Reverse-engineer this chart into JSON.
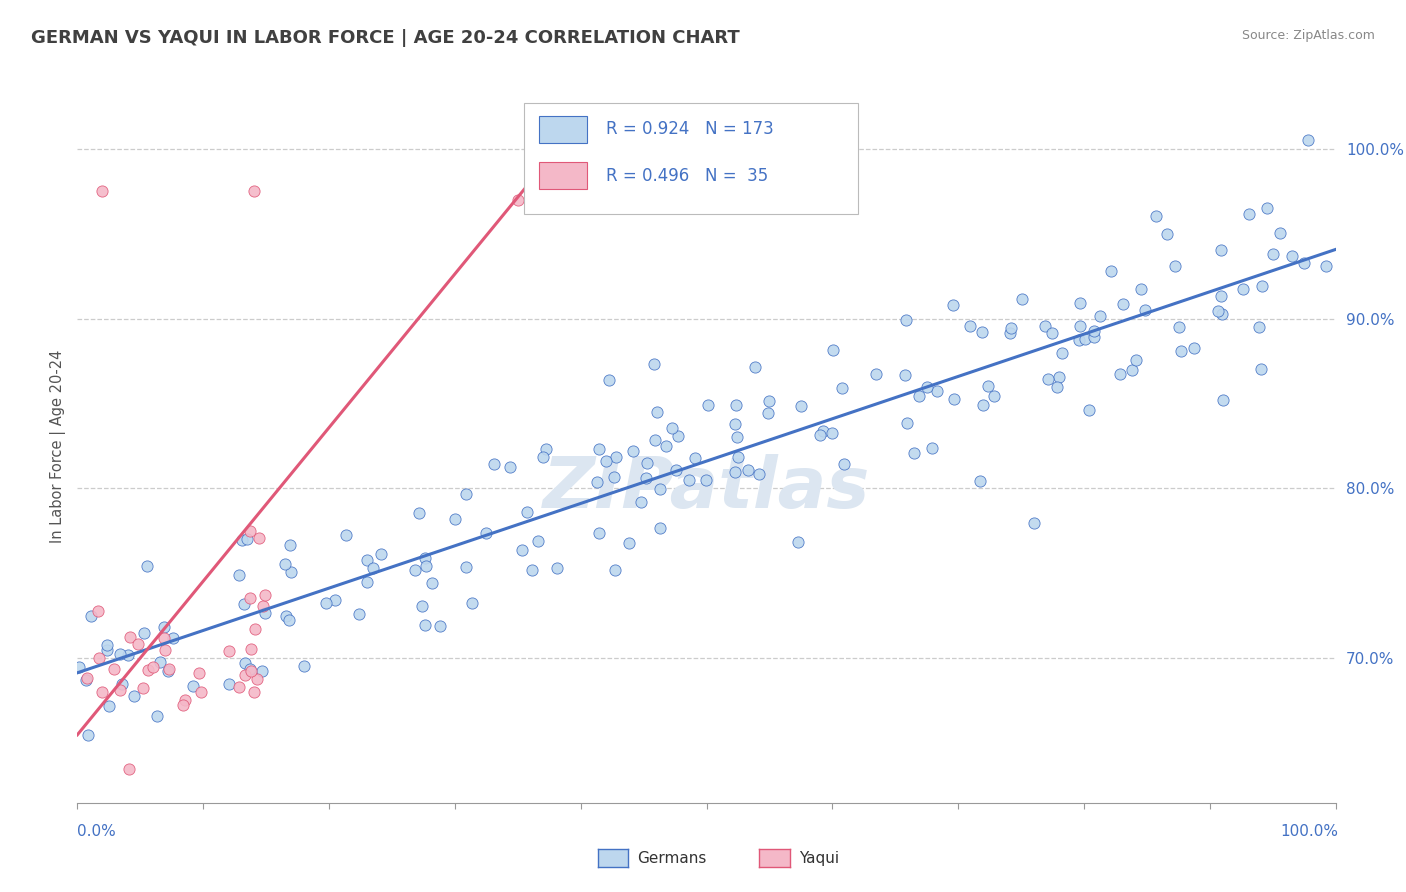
{
  "title": "GERMAN VS YAQUI IN LABOR FORCE | AGE 20-24 CORRELATION CHART",
  "source_text": "Source: ZipAtlas.com",
  "ylabel": "In Labor Force | Age 20-24",
  "legend_labels": [
    "Germans",
    "Yaqui"
  ],
  "german_R": 0.924,
  "german_N": 173,
  "yaqui_R": 0.496,
  "yaqui_N": 35,
  "yticks": [
    0.7,
    0.8,
    0.9,
    1.0
  ],
  "ytick_labels": [
    "70.0%",
    "80.0%",
    "90.0%",
    "100.0%"
  ],
  "german_fill": "#bdd7ee",
  "german_edge": "#4472c4",
  "yaqui_fill": "#f4b8c8",
  "yaqui_edge": "#e05878",
  "german_line": "#4472c4",
  "yaqui_line": "#e05878",
  "title_color": "#404040",
  "axis_blue": "#4472c4",
  "grid_color": "#cccccc",
  "watermark_color": "#dce6f1",
  "bg_color": "#ffffff",
  "title_fontsize": 13,
  "seed": 7
}
